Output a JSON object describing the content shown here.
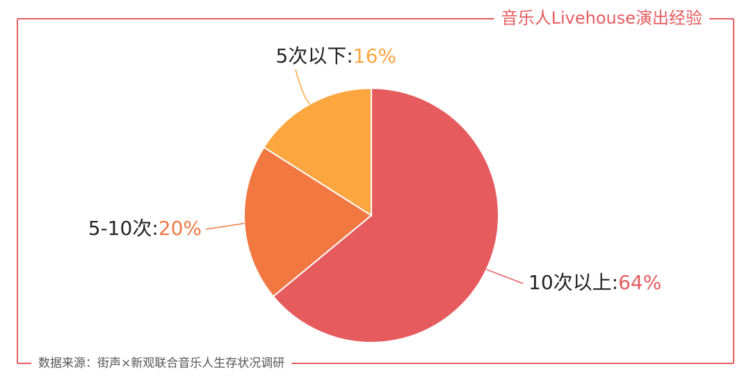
{
  "chart_data": {
    "type": "pie",
    "title": "音乐人Livehouse演出经验",
    "source": "数据来源：街声×新观联合音乐人生存状况调研",
    "categories": [
      "10次以上",
      "5-10次",
      "5次以下"
    ],
    "values": [
      64,
      20,
      16
    ],
    "value_labels": [
      "64%",
      "20%",
      "16%"
    ],
    "label_separator": ":",
    "colors": [
      "#e55b5e",
      "#f27842",
      "#fca63f"
    ],
    "frame_color": "#e55b5e"
  }
}
